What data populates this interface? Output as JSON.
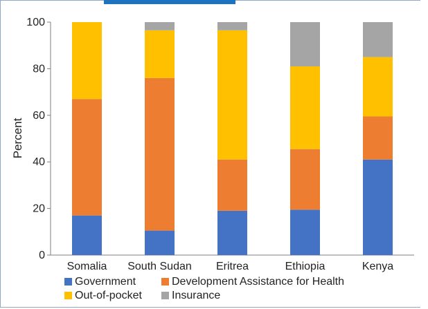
{
  "chart_data": {
    "type": "bar",
    "stacked": true,
    "categories": [
      "Somalia",
      "South Sudan",
      "Eritrea",
      "Ethiopia",
      "Kenya"
    ],
    "series": [
      {
        "name": "Government",
        "color": "#4472C4",
        "values": [
          17,
          10.5,
          19,
          19.5,
          41
        ]
      },
      {
        "name": "Development Assistance for Health",
        "color": "#ED7D31",
        "values": [
          50,
          65.5,
          22,
          26,
          18.5
        ]
      },
      {
        "name": "Out-of-pocket",
        "color": "#FFC000",
        "values": [
          33,
          20.5,
          55.5,
          35.5,
          25.5
        ]
      },
      {
        "name": "Insurance",
        "color": "#A5A5A5",
        "values": [
          0,
          3.5,
          3.5,
          19,
          15
        ]
      }
    ],
    "ylabel": "Percent",
    "ylim": [
      0,
      100
    ],
    "yticks": [
      "0",
      "20",
      "40",
      "60",
      "80",
      "100"
    ],
    "grid": false,
    "legend_position": "bottom"
  }
}
